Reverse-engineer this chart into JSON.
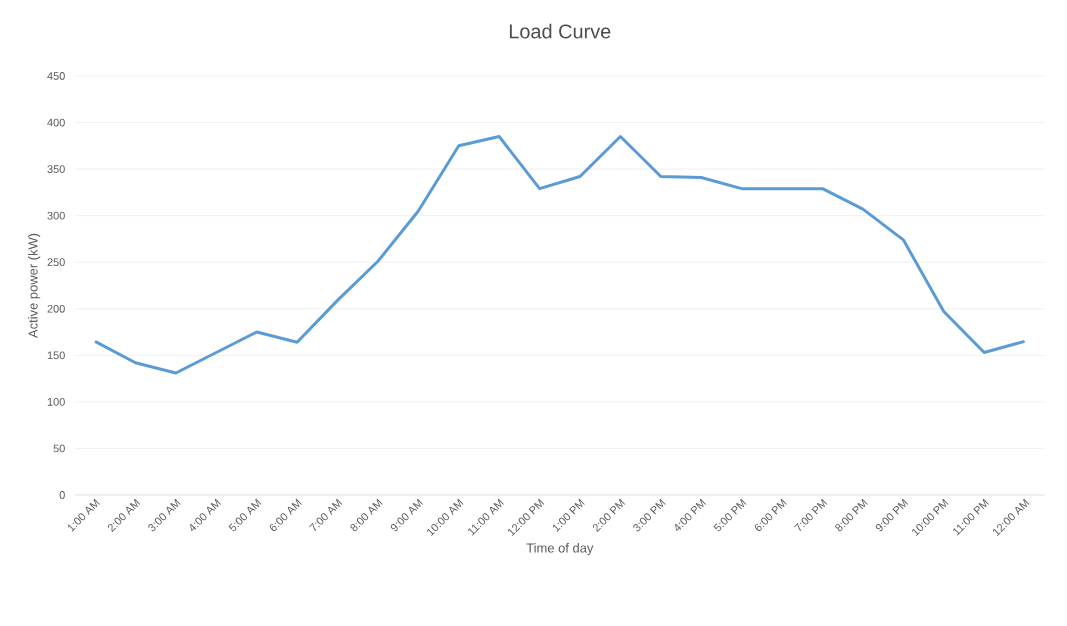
{
  "chart_data": {
    "type": "line",
    "title": "Load Curve",
    "xlabel": "Time of day",
    "ylabel": "Active power (kW)",
    "categories": [
      "1:00 AM",
      "2:00 AM",
      "3:00 AM",
      "4:00 AM",
      "5:00 AM",
      "6:00 AM",
      "7:00 AM",
      "8:00 AM",
      "9:00 AM",
      "10:00 AM",
      "11:00 AM",
      "12:00 PM",
      "1:00 PM",
      "2:00 PM",
      "3:00 PM",
      "4:00 PM",
      "5:00 PM",
      "6:00 PM",
      "7:00 PM",
      "8:00 PM",
      "9:00 PM",
      "10:00 PM",
      "11:00 PM",
      "12:00 AM"
    ],
    "series": [
      {
        "color": "#5b9bd5",
        "values": [
          165,
          142,
          131,
          153,
          175,
          164,
          209,
          251,
          305,
          375,
          385,
          329,
          342,
          385,
          342,
          341,
          329,
          329,
          329,
          307,
          274,
          197,
          153,
          165
        ]
      }
    ],
    "ylim": [
      0,
      450
    ],
    "yticks": [
      0,
      50,
      100,
      150,
      200,
      250,
      300,
      350,
      400,
      450
    ],
    "grid": "y",
    "marker": "none",
    "line_style": "solid"
  }
}
